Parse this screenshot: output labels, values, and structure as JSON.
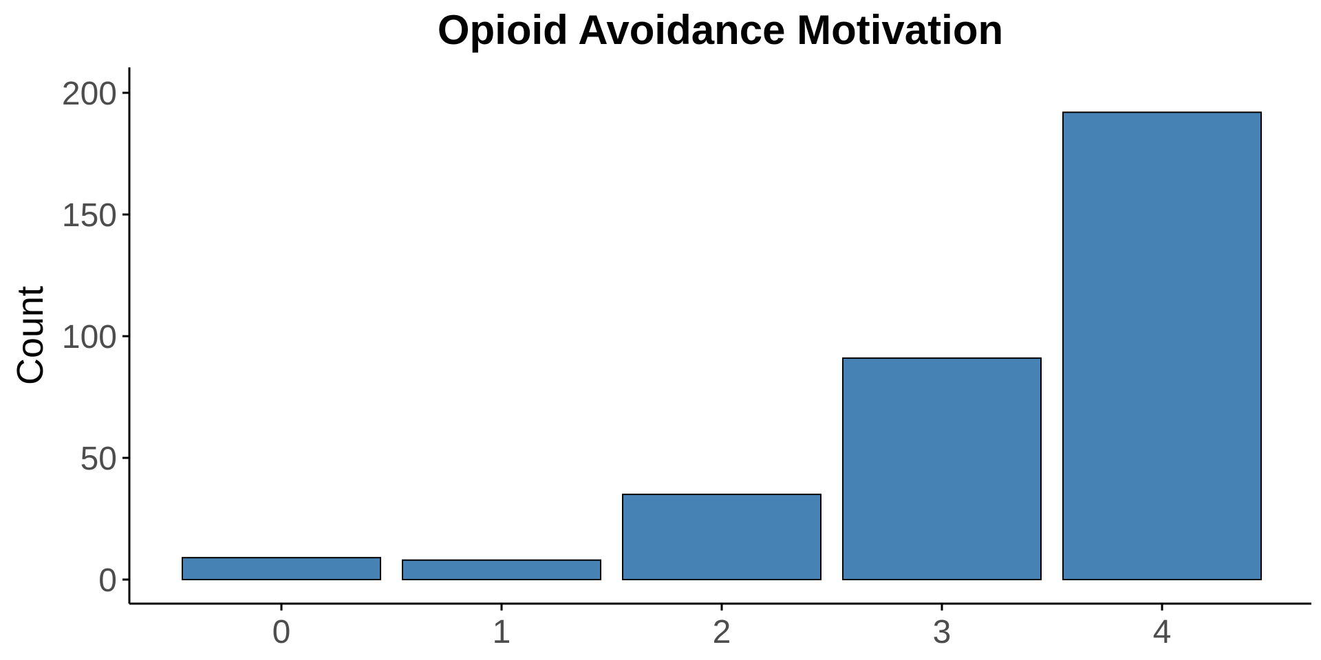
{
  "chart_data": {
    "type": "bar",
    "title": "Opioid Avoidance Motivation",
    "xlabel": "",
    "ylabel": "Count",
    "categories": [
      "0",
      "1",
      "2",
      "3",
      "4"
    ],
    "values": [
      9,
      8,
      35,
      91,
      192
    ],
    "ylim": [
      0,
      200
    ],
    "yticks": [
      "0",
      "50",
      "100",
      "150",
      "200"
    ],
    "grid": false,
    "legend": "none",
    "colors": {
      "bar_fill": "#4682b4",
      "bar_stroke": "#000000",
      "axis": "#000000",
      "tick_text": "#4d4d4d",
      "title_text": "#000000"
    }
  }
}
